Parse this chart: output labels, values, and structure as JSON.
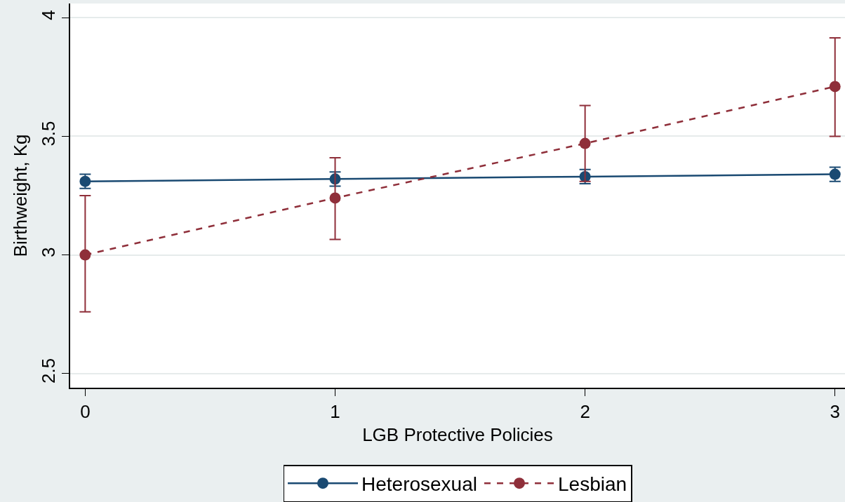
{
  "chart_data": {
    "type": "line",
    "xlabel": "LGB Protective Policies",
    "ylabel": "Birthweight, Kg",
    "x": [
      0,
      1,
      2,
      3
    ],
    "series": [
      {
        "name": "Heterosexual",
        "color": "#1a4a72",
        "line_style": "solid",
        "values": [
          3.31,
          3.32,
          3.33,
          3.34
        ],
        "errors": [
          0.03,
          0.03,
          0.03,
          0.03
        ]
      },
      {
        "name": "Lesbian",
        "color": "#8f2f3a",
        "line_style": "dashed",
        "values": [
          3.0,
          3.24,
          3.47,
          3.71
        ],
        "errors": [
          [
            2.76,
            3.25
          ],
          [
            3.065,
            3.41
          ],
          [
            3.31,
            3.63
          ],
          [
            3.5,
            3.915
          ]
        ]
      }
    ],
    "xlim": [
      -0.06,
      3.04
    ],
    "ylim": [
      2.44,
      4.06
    ],
    "xticks": [
      0,
      1,
      2,
      3
    ],
    "yticks": [
      2.5,
      3,
      3.5,
      4
    ],
    "grid": "y",
    "legend": "bottom",
    "marker": "circle"
  }
}
